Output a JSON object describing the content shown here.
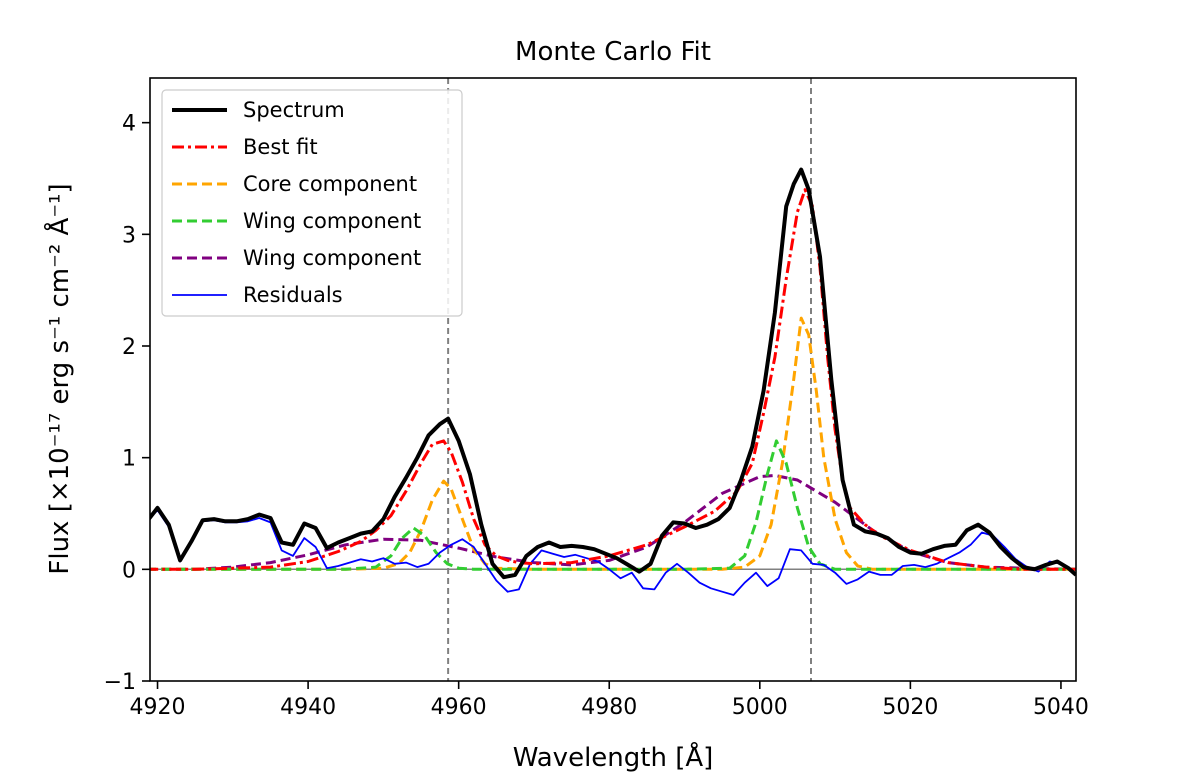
{
  "chart_data": {
    "type": "line",
    "title": "Monte Carlo Fit",
    "xlabel": "Wavelength [Å]",
    "ylabel": "Flux [×10⁻¹⁷ erg s⁻¹ cm⁻² Å⁻¹]",
    "xlim": [
      4919,
      5042
    ],
    "ylim": [
      -1,
      4.4
    ],
    "xticks": [
      4920,
      4940,
      4960,
      4980,
      5000,
      5020,
      5040
    ],
    "yticks": [
      -1,
      0,
      1,
      2,
      3,
      4
    ],
    "xtick_labels": [
      "4920",
      "4940",
      "4960",
      "4980",
      "5000",
      "5020",
      "5040"
    ],
    "ytick_labels": [
      "−1",
      "0",
      "1",
      "2",
      "3",
      "4"
    ],
    "grid": false,
    "legend_location": "upper-left",
    "vlines": [
      4958.6,
      5006.8
    ],
    "zero_line": 0,
    "series": [
      {
        "name": "Spectrum",
        "color": "#000000",
        "style": "solid-thick",
        "x": [
          4918.5,
          4920,
          4921.5,
          4923,
          4924.5,
          4926,
          4927.5,
          4929,
          4930.5,
          4932,
          4933.5,
          4935,
          4936.5,
          4938,
          4939.5,
          4941,
          4942.5,
          4944,
          4945.5,
          4947,
          4948.5,
          4950,
          4951.5,
          4953,
          4954.5,
          4956,
          4957.5,
          4958.6,
          4960,
          4961.5,
          4963,
          4964.5,
          4966,
          4967.5,
          4969,
          4970.5,
          4972,
          4973.5,
          4975,
          4976.5,
          4978,
          4979.5,
          4981,
          4982.5,
          4984,
          4985.5,
          4987,
          4988.5,
          4990,
          4991.5,
          4993,
          4994.5,
          4996,
          4997.5,
          4999,
          5000.5,
          5002,
          5003.5,
          5004.5,
          5005.5,
          5006.5,
          5008,
          5009.5,
          5011,
          5012.5,
          5014,
          5015.5,
          5017,
          5018.5,
          5020,
          5021.5,
          5023,
          5024.5,
          5026,
          5027.5,
          5029,
          5030.5,
          5032,
          5033.5,
          5035,
          5036.5,
          5038,
          5039.5,
          5041,
          5042
        ],
        "values": [
          0.42,
          0.55,
          0.4,
          0.08,
          0.25,
          0.44,
          0.45,
          0.43,
          0.43,
          0.45,
          0.49,
          0.46,
          0.24,
          0.22,
          0.41,
          0.37,
          0.19,
          0.24,
          0.28,
          0.32,
          0.34,
          0.45,
          0.65,
          0.82,
          1.0,
          1.2,
          1.3,
          1.35,
          1.15,
          0.85,
          0.4,
          0.05,
          -0.07,
          -0.05,
          0.12,
          0.2,
          0.24,
          0.2,
          0.21,
          0.2,
          0.18,
          0.14,
          0.1,
          0.04,
          -0.02,
          0.05,
          0.3,
          0.42,
          0.41,
          0.37,
          0.4,
          0.45,
          0.55,
          0.8,
          1.1,
          1.6,
          2.3,
          3.25,
          3.45,
          3.58,
          3.4,
          2.8,
          1.7,
          0.8,
          0.4,
          0.34,
          0.32,
          0.28,
          0.2,
          0.15,
          0.14,
          0.18,
          0.21,
          0.22,
          0.35,
          0.4,
          0.33,
          0.2,
          0.1,
          0.02,
          0.0,
          0.04,
          0.07,
          0.01,
          -0.05
        ]
      },
      {
        "name": "Best fit",
        "color": "#ff0000",
        "style": "dashdot",
        "x": [
          4918.5,
          4925,
          4930,
          4935,
          4940,
          4944,
          4947,
          4949,
          4951,
          4953,
          4955,
          4956.5,
          4958,
          4959,
          4960.5,
          4962,
          4963.5,
          4965,
          4966.5,
          4968,
          4970,
          4975,
          4980,
          4985,
          4990,
          4994,
          4997,
          4999,
          5000.5,
          5002,
          5003.5,
          5005,
          5006,
          5007,
          5008,
          5009,
          5010,
          5011,
          5012,
          5014,
          5016,
          5020,
          5025,
          5030,
          5035,
          5042
        ],
        "values": [
          0.0,
          0.0,
          0.01,
          0.02,
          0.07,
          0.16,
          0.25,
          0.35,
          0.48,
          0.7,
          0.95,
          1.12,
          1.15,
          1.05,
          0.78,
          0.45,
          0.22,
          0.12,
          0.08,
          0.06,
          0.05,
          0.06,
          0.12,
          0.22,
          0.38,
          0.52,
          0.7,
          0.95,
          1.4,
          1.9,
          2.6,
          3.2,
          3.4,
          3.25,
          2.7,
          1.9,
          1.25,
          0.8,
          0.55,
          0.4,
          0.3,
          0.17,
          0.06,
          0.02,
          0.0,
          0.0
        ]
      },
      {
        "name": "Core component",
        "color": "#ffa500",
        "style": "dashed",
        "x": [
          4918.5,
          4945,
          4950,
          4952,
          4953.5,
          4955,
          4956.5,
          4958,
          4959,
          4960.5,
          4962,
          4963.5,
          4965,
          4970,
          4995,
          4998,
          5000,
          5001.5,
          5003,
          5004.5,
          5005.5,
          5006.5,
          5007.5,
          5008.5,
          5010,
          5011.5,
          5013,
          5015,
          5042
        ],
        "values": [
          0.0,
          0.0,
          0.01,
          0.05,
          0.15,
          0.35,
          0.62,
          0.79,
          0.72,
          0.45,
          0.18,
          0.05,
          0.01,
          0.0,
          0.0,
          0.02,
          0.12,
          0.4,
          0.95,
          1.7,
          2.25,
          2.1,
          1.6,
          1.0,
          0.45,
          0.15,
          0.03,
          0.0,
          0.0
        ]
      },
      {
        "name": "Wing component",
        "color": "#32cd32",
        "style": "dashed",
        "x": [
          4918.5,
          4945,
          4949,
          4951,
          4952.5,
          4954,
          4955.5,
          4957,
          4958.5,
          4960,
          4962,
          4990,
          4996,
          4998,
          4999.5,
          5001,
          5002.2,
          5003.5,
          5005,
          5006.5,
          5008,
          5010,
          5042
        ],
        "values": [
          0.0,
          0.0,
          0.02,
          0.12,
          0.28,
          0.37,
          0.3,
          0.15,
          0.05,
          0.01,
          0.0,
          0.0,
          0.01,
          0.12,
          0.42,
          0.85,
          1.15,
          0.95,
          0.55,
          0.2,
          0.05,
          0.0,
          0.0
        ]
      },
      {
        "name": "Wing component",
        "color": "#800080",
        "style": "dashed",
        "x": [
          4918.5,
          4925,
          4930,
          4935,
          4940,
          4945,
          4950,
          4955,
          4960,
          4965,
          4970,
          4975,
          4980,
          4985,
          4990,
          4995,
          5000,
          5002,
          5005,
          5010,
          5015,
          5020,
          5025,
          5030,
          5035,
          5042
        ],
        "values": [
          0.0,
          0.0,
          0.02,
          0.06,
          0.13,
          0.22,
          0.27,
          0.26,
          0.19,
          0.11,
          0.06,
          0.04,
          0.08,
          0.2,
          0.42,
          0.68,
          0.83,
          0.84,
          0.8,
          0.6,
          0.35,
          0.16,
          0.06,
          0.02,
          0.01,
          0.0
        ]
      },
      {
        "name": "Residuals",
        "color": "#0000ff",
        "style": "solid-thin",
        "x": [
          4918.5,
          4920,
          4921.5,
          4923,
          4924.5,
          4926,
          4927.5,
          4929,
          4930.5,
          4932,
          4933.5,
          4935,
          4936.5,
          4938,
          4939.5,
          4941,
          4942.5,
          4944,
          4945.5,
          4947,
          4948.5,
          4950,
          4951.5,
          4953,
          4954.5,
          4956,
          4957.5,
          4959,
          4960.5,
          4962,
          4963.5,
          4965,
          4966.5,
          4968,
          4969.5,
          4971,
          4972.5,
          4974,
          4975.5,
          4977,
          4978.5,
          4980,
          4981.5,
          4983,
          4984.5,
          4986,
          4987.5,
          4989,
          4990.5,
          4992,
          4993.5,
          4995,
          4996.5,
          4998,
          4999.5,
          5001,
          5002.5,
          5004,
          5005.5,
          5007,
          5008.5,
          5010,
          5011.5,
          5013,
          5014.5,
          5016,
          5017.5,
          5019,
          5020.5,
          5022,
          5023.5,
          5025,
          5026.5,
          5028,
          5029.5,
          5031,
          5032.5,
          5034,
          5035.5,
          5037,
          5038.5,
          5040,
          5042
        ],
        "values": [
          0.42,
          0.53,
          0.38,
          0.07,
          0.24,
          0.43,
          0.44,
          0.42,
          0.42,
          0.43,
          0.46,
          0.42,
          0.17,
          0.12,
          0.28,
          0.2,
          0.01,
          0.03,
          0.06,
          0.09,
          0.07,
          0.1,
          0.05,
          0.06,
          0.02,
          0.05,
          0.15,
          0.22,
          0.27,
          0.2,
          0.05,
          -0.1,
          -0.2,
          -0.18,
          0.05,
          0.17,
          0.14,
          0.11,
          0.13,
          0.1,
          0.07,
          0.0,
          -0.08,
          -0.03,
          -0.17,
          -0.18,
          -0.03,
          0.05,
          -0.03,
          -0.12,
          -0.17,
          -0.2,
          -0.23,
          -0.12,
          -0.03,
          -0.15,
          -0.08,
          0.18,
          0.17,
          0.05,
          0.04,
          -0.03,
          -0.13,
          -0.09,
          -0.02,
          -0.05,
          -0.05,
          0.03,
          0.04,
          0.02,
          0.05,
          0.1,
          0.15,
          0.22,
          0.33,
          0.3,
          0.2,
          0.09,
          0.02,
          -0.02,
          0.07,
          0.05,
          -0.05
        ]
      },
      {
        "name": "zero",
        "color": "#808080",
        "style": "baseline",
        "x": [
          4918.5,
          5042
        ],
        "values": [
          0.0,
          0.0
        ]
      }
    ]
  }
}
